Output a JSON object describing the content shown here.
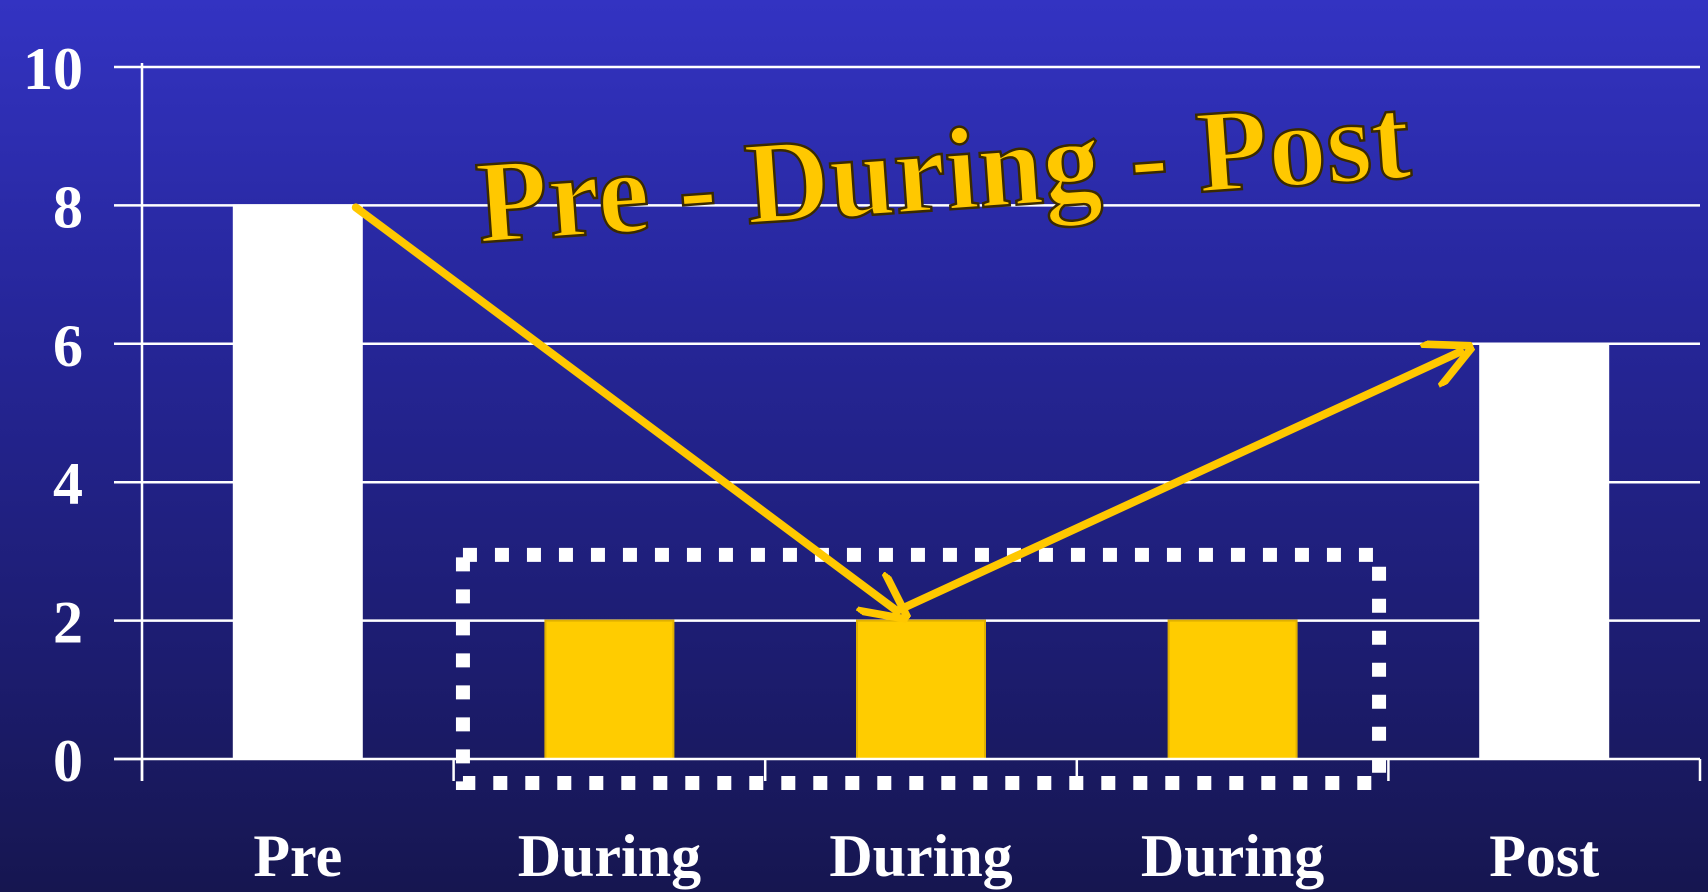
{
  "chart_data": {
    "type": "bar",
    "title": "Pre - During - Post",
    "categories": [
      "Pre",
      "During",
      "During",
      "During",
      "Post"
    ],
    "values": [
      8,
      2,
      2,
      2,
      6
    ],
    "bar_colors": [
      "#ffffff",
      "#ffcc00",
      "#ffcc00",
      "#ffcc00",
      "#ffffff"
    ],
    "ylim": [
      0,
      10
    ],
    "yticks": [
      0,
      2,
      4,
      6,
      8,
      10
    ],
    "grid": true,
    "highlight_group": {
      "categories": [
        "During",
        "During",
        "During"
      ],
      "style": "dotted-box"
    },
    "annotations": [
      {
        "type": "arrow",
        "from_category": "Pre",
        "from_value": 8,
        "to_category": "During",
        "to_value": 2.4
      },
      {
        "type": "arrow",
        "from_category": "During",
        "from_value": 2.4,
        "to_category": "Post",
        "to_value": 6
      }
    ]
  },
  "colors": {
    "accent": "#ffc800",
    "axis": "#ffffff",
    "background_top": "#3333c2",
    "background_bottom": "#161650"
  }
}
